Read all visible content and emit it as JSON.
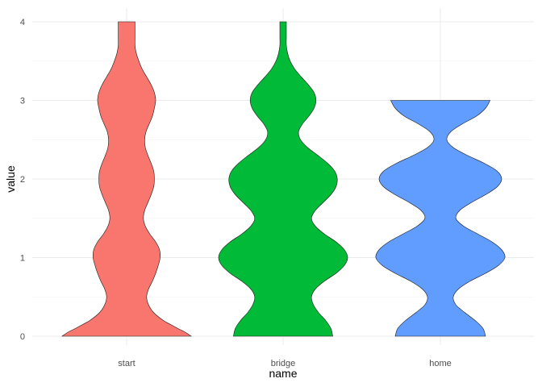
{
  "chart_data": {
    "type": "violin",
    "xlabel": "name",
    "ylabel": "value",
    "categories": [
      "start",
      "bridge",
      "home"
    ],
    "ylim": [
      0,
      4
    ],
    "yticks": [
      0,
      1,
      2,
      3,
      4
    ],
    "grid": true,
    "series": [
      {
        "category": "start",
        "color": "#F8766D",
        "y_range": [
          0,
          4
        ],
        "density_profile": [
          [
            0.0,
            1.0
          ],
          [
            0.05,
            0.91
          ],
          [
            0.1,
            0.79
          ],
          [
            0.15,
            0.68
          ],
          [
            0.2,
            0.57
          ],
          [
            0.3,
            0.42
          ],
          [
            0.4,
            0.34
          ],
          [
            0.5,
            0.31
          ],
          [
            0.6,
            0.34
          ],
          [
            0.7,
            0.4
          ],
          [
            0.8,
            0.45
          ],
          [
            0.9,
            0.49
          ],
          [
            1.0,
            0.52
          ],
          [
            1.1,
            0.51
          ],
          [
            1.2,
            0.45
          ],
          [
            1.3,
            0.36
          ],
          [
            1.4,
            0.29
          ],
          [
            1.5,
            0.26
          ],
          [
            1.6,
            0.28
          ],
          [
            1.7,
            0.33
          ],
          [
            1.8,
            0.38
          ],
          [
            1.9,
            0.42
          ],
          [
            2.0,
            0.43
          ],
          [
            2.1,
            0.42
          ],
          [
            2.2,
            0.38
          ],
          [
            2.3,
            0.33
          ],
          [
            2.4,
            0.29
          ],
          [
            2.5,
            0.28
          ],
          [
            2.6,
            0.3
          ],
          [
            2.7,
            0.35
          ],
          [
            2.8,
            0.4
          ],
          [
            2.9,
            0.43
          ],
          [
            3.0,
            0.45
          ],
          [
            3.1,
            0.43
          ],
          [
            3.2,
            0.38
          ],
          [
            3.3,
            0.31
          ],
          [
            3.4,
            0.24
          ],
          [
            3.5,
            0.19
          ],
          [
            3.6,
            0.15
          ],
          [
            3.7,
            0.13
          ],
          [
            3.8,
            0.13
          ],
          [
            3.9,
            0.13
          ],
          [
            4.0,
            0.13
          ]
        ]
      },
      {
        "category": "bridge",
        "color": "#00BA38",
        "y_range": [
          0,
          4
        ],
        "density_profile": [
          [
            0.0,
            0.77
          ],
          [
            0.1,
            0.74
          ],
          [
            0.2,
            0.66
          ],
          [
            0.3,
            0.55
          ],
          [
            0.4,
            0.47
          ],
          [
            0.5,
            0.44
          ],
          [
            0.6,
            0.5
          ],
          [
            0.7,
            0.64
          ],
          [
            0.8,
            0.82
          ],
          [
            0.9,
            0.95
          ],
          [
            1.0,
            1.0
          ],
          [
            1.1,
            0.95
          ],
          [
            1.2,
            0.82
          ],
          [
            1.3,
            0.64
          ],
          [
            1.4,
            0.5
          ],
          [
            1.5,
            0.44
          ],
          [
            1.6,
            0.5
          ],
          [
            1.7,
            0.62
          ],
          [
            1.8,
            0.74
          ],
          [
            1.9,
            0.82
          ],
          [
            2.0,
            0.84
          ],
          [
            2.1,
            0.8
          ],
          [
            2.2,
            0.69
          ],
          [
            2.3,
            0.54
          ],
          [
            2.4,
            0.38
          ],
          [
            2.5,
            0.27
          ],
          [
            2.6,
            0.24
          ],
          [
            2.7,
            0.3
          ],
          [
            2.8,
            0.4
          ],
          [
            2.9,
            0.48
          ],
          [
            3.0,
            0.51
          ],
          [
            3.1,
            0.48
          ],
          [
            3.2,
            0.39
          ],
          [
            3.3,
            0.28
          ],
          [
            3.4,
            0.18
          ],
          [
            3.5,
            0.11
          ],
          [
            3.6,
            0.07
          ],
          [
            3.7,
            0.05
          ],
          [
            3.8,
            0.05
          ],
          [
            3.9,
            0.05
          ],
          [
            4.0,
            0.05
          ]
        ]
      },
      {
        "category": "home",
        "color": "#619CFF",
        "y_range": [
          0,
          3
        ],
        "density_profile": [
          [
            0.0,
            0.7
          ],
          [
            0.1,
            0.66
          ],
          [
            0.2,
            0.54
          ],
          [
            0.3,
            0.38
          ],
          [
            0.4,
            0.24
          ],
          [
            0.5,
            0.2
          ],
          [
            0.6,
            0.28
          ],
          [
            0.7,
            0.46
          ],
          [
            0.8,
            0.7
          ],
          [
            0.9,
            0.9
          ],
          [
            1.0,
            1.0
          ],
          [
            1.1,
            0.95
          ],
          [
            1.2,
            0.8
          ],
          [
            1.3,
            0.58
          ],
          [
            1.4,
            0.36
          ],
          [
            1.5,
            0.24
          ],
          [
            1.6,
            0.3
          ],
          [
            1.7,
            0.48
          ],
          [
            1.8,
            0.7
          ],
          [
            1.9,
            0.88
          ],
          [
            2.0,
            0.95
          ],
          [
            2.1,
            0.88
          ],
          [
            2.2,
            0.68
          ],
          [
            2.3,
            0.42
          ],
          [
            2.4,
            0.2
          ],
          [
            2.5,
            0.1
          ],
          [
            2.6,
            0.16
          ],
          [
            2.7,
            0.34
          ],
          [
            2.8,
            0.56
          ],
          [
            2.9,
            0.7
          ],
          [
            3.0,
            0.77
          ]
        ]
      }
    ]
  }
}
